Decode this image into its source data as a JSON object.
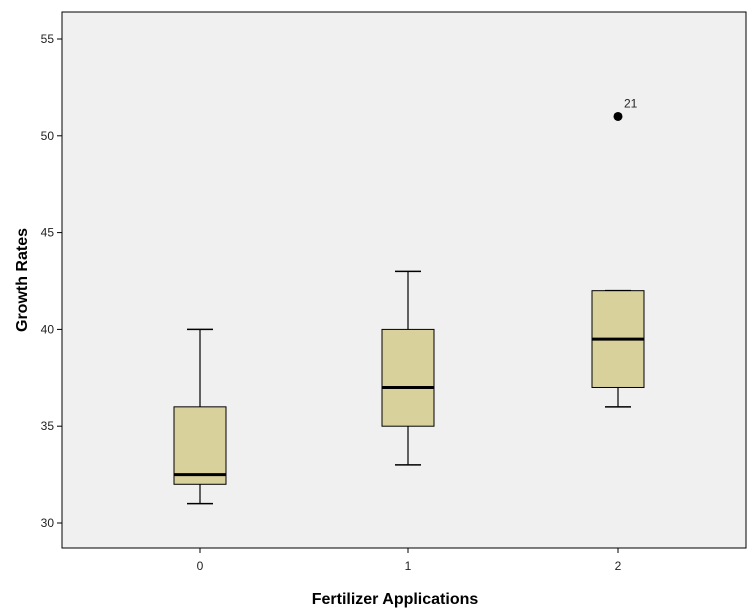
{
  "chart_data": {
    "type": "box",
    "xlabel": "Fertilizer Applications",
    "ylabel": "Growth Rates",
    "categories": [
      "0",
      "1",
      "2"
    ],
    "ylim": [
      29.5,
      56
    ],
    "yticks": [
      30,
      35,
      40,
      45,
      50,
      55
    ],
    "boxes": [
      {
        "category": "0",
        "min": 31,
        "q1": 32,
        "median": 32.5,
        "q3": 36,
        "max": 40
      },
      {
        "category": "1",
        "min": 33,
        "q1": 35,
        "median": 37,
        "q3": 40,
        "max": 43
      },
      {
        "category": "2",
        "min": 36,
        "q1": 37,
        "median": 39.5,
        "q3": 42,
        "max": 42
      }
    ],
    "outliers": [
      {
        "category": "2",
        "value": 51,
        "label": "21"
      }
    ],
    "grid": false,
    "colors": {
      "plot_background": "#f0f0f0",
      "box_fill": "#d9d19c",
      "box_stroke": "#000000",
      "median": "#000000"
    }
  }
}
